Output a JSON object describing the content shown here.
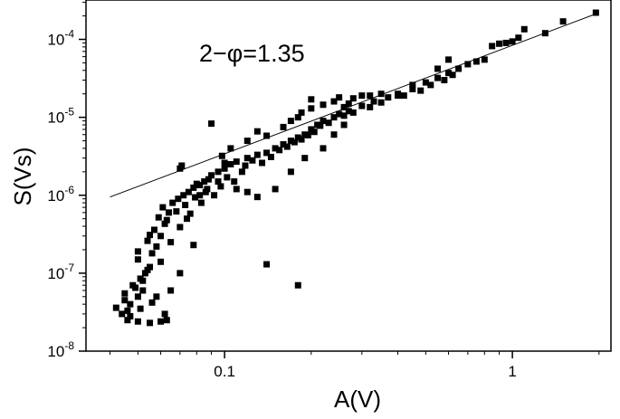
{
  "chart_data": {
    "type": "scatter",
    "xlabel": "A(V)",
    "ylabel": "S(Vs)",
    "xscale": "log",
    "yscale": "log",
    "xlim": [
      0.033,
      2.2
    ],
    "ylim": [
      1e-08,
      0.00032
    ],
    "x_ticks": [
      {
        "value": 0.1,
        "label": "0.1"
      },
      {
        "value": 1,
        "label": "1"
      }
    ],
    "y_ticks": [
      {
        "value": 1e-08,
        "base": "10",
        "exp": "-8"
      },
      {
        "value": 1e-07,
        "base": "10",
        "exp": "-7"
      },
      {
        "value": 1e-06,
        "base": "10",
        "exp": "-6"
      },
      {
        "value": 1e-05,
        "base": "10",
        "exp": "-5"
      },
      {
        "value": 0.0001,
        "base": "10",
        "exp": "-4"
      }
    ],
    "grid": false,
    "marker": "square",
    "color": "#000000",
    "annotation": "2−φ=1.35",
    "fit_line": {
      "slope": 1.35,
      "x": [
        0.04,
        2.0
      ],
      "y": [
        9.5e-07,
        0.00022
      ]
    },
    "points": [
      [
        0.046,
        2.5e-08
      ],
      [
        0.05,
        2.4e-08
      ],
      [
        0.055,
        2.3e-08
      ],
      [
        0.06,
        2.4e-08
      ],
      [
        0.063,
        2.5e-08
      ],
      [
        0.044,
        3e-08
      ],
      [
        0.046,
        3.3e-08
      ],
      [
        0.042,
        3.6e-08
      ],
      [
        0.047,
        4e-08
      ],
      [
        0.05,
        5e-08
      ],
      [
        0.052,
        6e-08
      ],
      [
        0.045,
        5.5e-08
      ],
      [
        0.048,
        7e-08
      ],
      [
        0.051,
        8.5e-08
      ],
      [
        0.053,
        1e-07
      ],
      [
        0.055,
        1.2e-07
      ],
      [
        0.05,
        1.5e-07
      ],
      [
        0.056,
        1.8e-07
      ],
      [
        0.058,
        2.2e-07
      ],
      [
        0.054,
        2.6e-07
      ],
      [
        0.06,
        3e-07
      ],
      [
        0.057,
        3.6e-07
      ],
      [
        0.062,
        4.3e-07
      ],
      [
        0.059,
        5.2e-07
      ],
      [
        0.064,
        6e-07
      ],
      [
        0.061,
        7e-07
      ],
      [
        0.066,
        8e-07
      ],
      [
        0.069,
        9e-07
      ],
      [
        0.072,
        1e-06
      ],
      [
        0.075,
        1.1e-06
      ],
      [
        0.078,
        1.25e-06
      ],
      [
        0.082,
        1.35e-06
      ],
      [
        0.085,
        1.5e-06
      ],
      [
        0.088,
        1.6e-06
      ],
      [
        0.09,
        1.8e-06
      ],
      [
        0.095,
        2e-06
      ],
      [
        0.1,
        2.2e-06
      ],
      [
        0.105,
        2.5e-06
      ],
      [
        0.11,
        2.7e-06
      ],
      [
        0.12,
        3e-06
      ],
      [
        0.13,
        3.3e-06
      ],
      [
        0.14,
        3.5e-06
      ],
      [
        0.15,
        4e-06
      ],
      [
        0.16,
        4.5e-06
      ],
      [
        0.17,
        5e-06
      ],
      [
        0.18,
        5.5e-06
      ],
      [
        0.19,
        6e-06
      ],
      [
        0.2,
        7e-06
      ],
      [
        0.21,
        8e-06
      ],
      [
        0.22,
        9e-06
      ],
      [
        0.24,
        1e-05
      ],
      [
        0.25,
        1.1e-05
      ],
      [
        0.27,
        1.2e-05
      ],
      [
        0.3,
        1.4e-05
      ],
      [
        0.33,
        1.6e-05
      ],
      [
        0.37,
        1.8e-05
      ],
      [
        0.4,
        2e-05
      ],
      [
        0.45,
        2.3e-05
      ],
      [
        0.5,
        2.8e-05
      ],
      [
        0.55,
        3.2e-05
      ],
      [
        0.6,
        3.7e-05
      ],
      [
        0.65,
        4.2e-05
      ],
      [
        0.7,
        4.8e-05
      ],
      [
        0.8,
        5.5e-05
      ],
      [
        0.85,
        8.2e-05
      ],
      [
        0.9,
        8.8e-05
      ],
      [
        1.0,
        9.4e-05
      ],
      [
        1.05,
        0.000105
      ],
      [
        1.1,
        0.000135
      ],
      [
        1.3,
        0.00012
      ],
      [
        1.5,
        0.00017
      ],
      [
        1.95,
        0.00022
      ],
      [
        0.05,
        1.9e-07
      ],
      [
        0.055,
        3.1e-07
      ],
      [
        0.06,
        1.4e-07
      ],
      [
        0.063,
        4.8e-07
      ],
      [
        0.065,
        2.5e-07
      ],
      [
        0.068,
        6.2e-07
      ],
      [
        0.07,
        3.9e-07
      ],
      [
        0.073,
        7.5e-07
      ],
      [
        0.076,
        5.8e-07
      ],
      [
        0.079,
        9.4e-07
      ],
      [
        0.083,
        8e-07
      ],
      [
        0.086,
        1.1e-06
      ],
      [
        0.092,
        1e-06
      ],
      [
        0.097,
        1.3e-06
      ],
      [
        0.102,
        1.7e-06
      ],
      [
        0.108,
        1.5e-06
      ],
      [
        0.115,
        2e-06
      ],
      [
        0.118,
        2.4e-06
      ],
      [
        0.125,
        2.8e-06
      ],
      [
        0.135,
        2.6e-06
      ],
      [
        0.145,
        3.1e-06
      ],
      [
        0.155,
        3.8e-06
      ],
      [
        0.165,
        4.2e-06
      ],
      [
        0.175,
        4.8e-06
      ],
      [
        0.185,
        5.2e-06
      ],
      [
        0.195,
        5.9e-06
      ],
      [
        0.205,
        6.5e-06
      ],
      [
        0.215,
        7.8e-06
      ],
      [
        0.23,
        8.5e-06
      ],
      [
        0.26,
        1.05e-05
      ],
      [
        0.28,
        1.15e-05
      ],
      [
        0.32,
        1.35e-05
      ],
      [
        0.35,
        1.55e-05
      ],
      [
        0.42,
        1.9e-05
      ],
      [
        0.48,
        2.2e-05
      ],
      [
        0.52,
        2.6e-05
      ],
      [
        0.58,
        3e-05
      ],
      [
        0.62,
        3.5e-05
      ],
      [
        0.75,
        5.2e-05
      ],
      [
        0.95,
        9e-05
      ],
      [
        0.07,
        2.2e-06
      ],
      [
        0.071,
        2.4e-06
      ],
      [
        0.09,
        8.3e-06
      ],
      [
        0.11,
        1.2e-06
      ],
      [
        0.12,
        1.1e-06
      ],
      [
        0.13,
        9.5e-07
      ],
      [
        0.15,
        1.2e-06
      ],
      [
        0.17,
        2e-06
      ],
      [
        0.19,
        3e-06
      ],
      [
        0.22,
        4e-06
      ],
      [
        0.24,
        6e-06
      ],
      [
        0.26,
        8e-06
      ],
      [
        0.2,
        1.7e-05
      ],
      [
        0.25,
        1.8e-05
      ],
      [
        0.27,
        1.5e-05
      ],
      [
        0.3,
        1.9e-05
      ],
      [
        0.35,
        2e-05
      ],
      [
        0.4,
        1.9e-05
      ],
      [
        0.45,
        2.6e-05
      ],
      [
        0.55,
        4.2e-05
      ],
      [
        0.6,
        5.5e-05
      ],
      [
        0.18,
        1e-05
      ],
      [
        0.2,
        1.3e-05
      ],
      [
        0.22,
        1.45e-05
      ],
      [
        0.24,
        1.6e-05
      ],
      [
        0.26,
        1.35e-05
      ],
      [
        0.28,
        1.75e-05
      ],
      [
        0.32,
        1.9e-05
      ],
      [
        0.14,
        5.8e-06
      ],
      [
        0.16,
        7.5e-06
      ],
      [
        0.17,
        9e-06
      ],
      [
        0.185,
        1.15e-05
      ],
      [
        0.13,
        6.6e-06
      ],
      [
        0.12,
        5e-06
      ],
      [
        0.105,
        4e-06
      ],
      [
        0.098,
        3.2e-06
      ],
      [
        0.1,
        2.6e-06
      ],
      [
        0.095,
        1.5e-06
      ],
      [
        0.082,
        1e-06
      ],
      [
        0.087,
        1.2e-06
      ],
      [
        0.14,
        1.3e-07
      ],
      [
        0.18,
        7e-08
      ],
      [
        0.065,
        6e-08
      ],
      [
        0.062,
        3e-08
      ],
      [
        0.078,
        2.3e-07
      ],
      [
        0.07,
        1e-07
      ],
      [
        0.074,
        5e-07
      ],
      [
        0.08,
        1.4e-06
      ],
      [
        0.045,
        4.5e-08
      ],
      [
        0.049,
        6.5e-08
      ],
      [
        0.052,
        8e-08
      ],
      [
        0.054,
        1.1e-07
      ],
      [
        0.047,
        2.8e-08
      ],
      [
        0.051,
        3.5e-08
      ],
      [
        0.056,
        4.2e-08
      ],
      [
        0.058,
        5e-08
      ]
    ]
  }
}
